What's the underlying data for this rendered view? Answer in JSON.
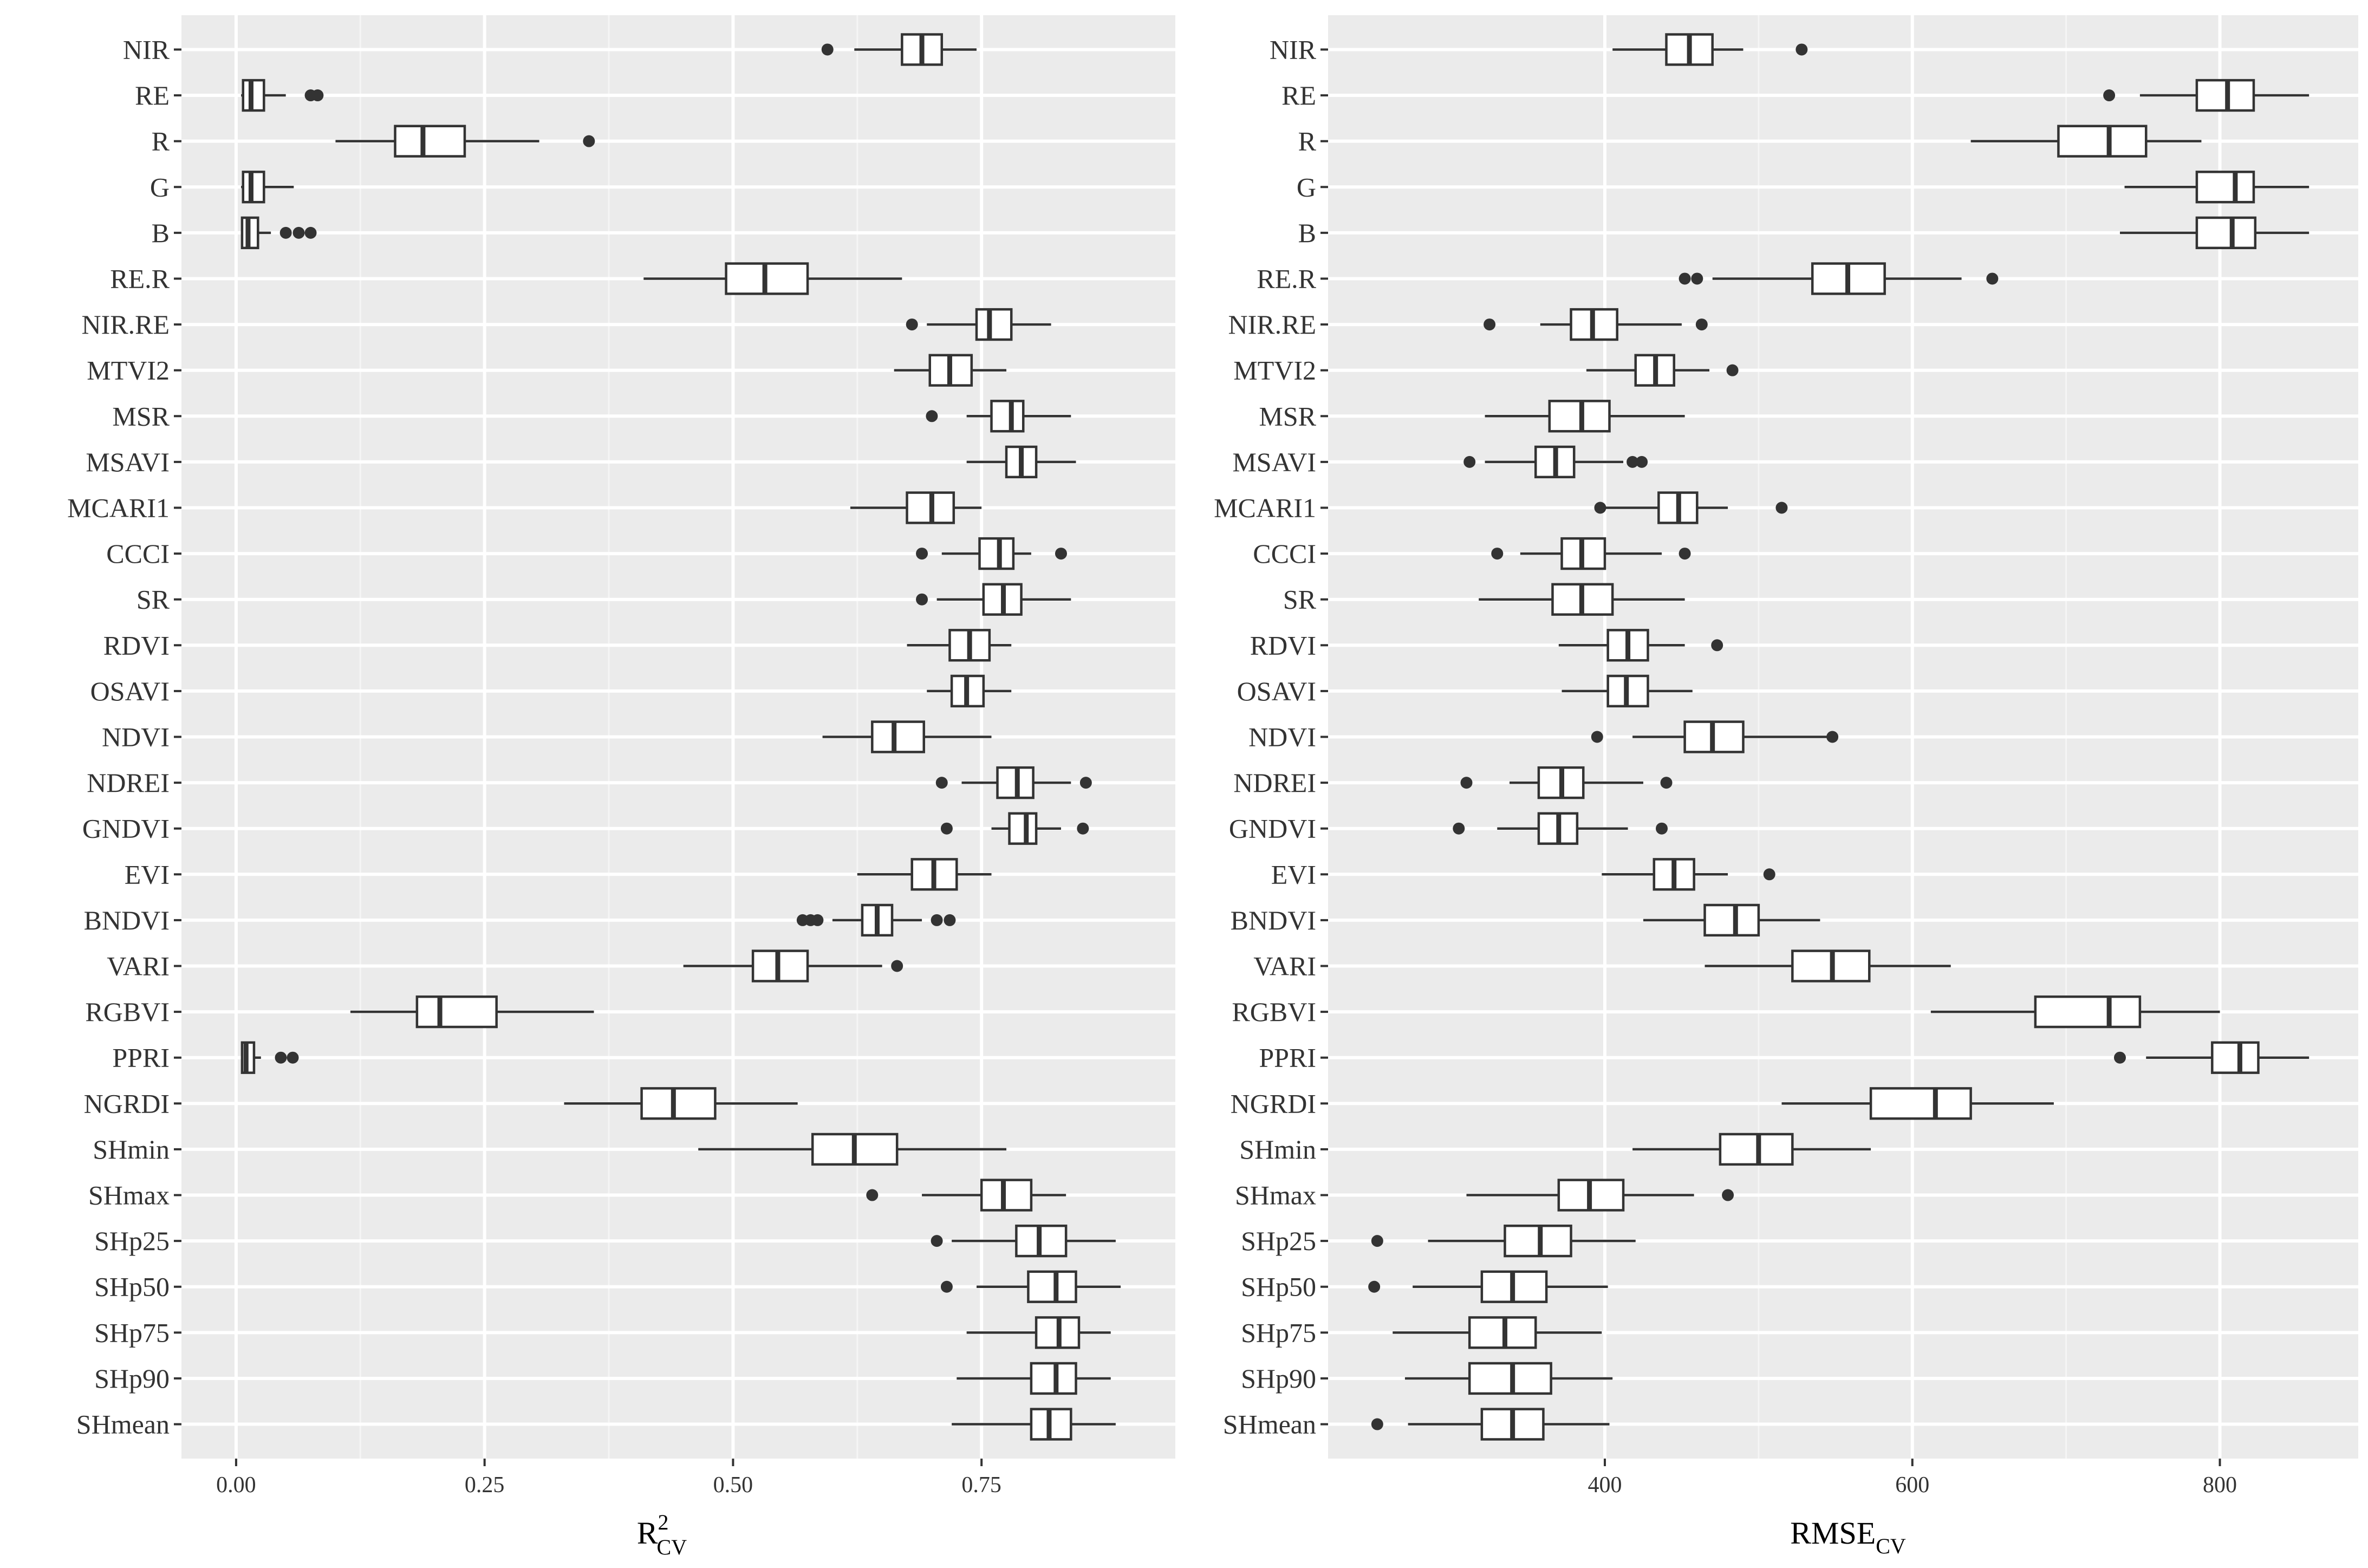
{
  "chart_data": [
    {
      "type": "box",
      "orientation": "horizontal",
      "xlabel_main": "R",
      "xlabel_sup": "2",
      "xlabel_sub": "CV",
      "xlim": [
        -0.055,
        0.945
      ],
      "xticks": [
        0,
        0.25,
        0.5,
        0.75
      ],
      "xtick_labels": [
        "0.00",
        "0.25",
        "0.50",
        "0.75"
      ],
      "grid": true,
      "panel_bg": "#ebebeb",
      "boxes": [
        {
          "label": "NIR",
          "wlo": 0.622,
          "q1": 0.67,
          "median": 0.69,
          "q3": 0.71,
          "whi": 0.745,
          "outliers": [
            0.595
          ]
        },
        {
          "label": "RE",
          "wlo": 0.005,
          "q1": 0.007,
          "median": 0.015,
          "q3": 0.028,
          "whi": 0.05,
          "outliers": [
            0.075,
            0.082
          ]
        },
        {
          "label": "R",
          "wlo": 0.1,
          "q1": 0.16,
          "median": 0.188,
          "q3": 0.23,
          "whi": 0.305,
          "outliers": [
            0.355
          ]
        },
        {
          "label": "G",
          "wlo": 0.005,
          "q1": 0.007,
          "median": 0.015,
          "q3": 0.028,
          "whi": 0.058,
          "outliers": []
        },
        {
          "label": "B",
          "wlo": 0.005,
          "q1": 0.006,
          "median": 0.012,
          "q3": 0.022,
          "whi": 0.035,
          "outliers": [
            0.05,
            0.063,
            0.075
          ]
        },
        {
          "label": "RE.R",
          "wlo": 0.41,
          "q1": 0.493,
          "median": 0.532,
          "q3": 0.575,
          "whi": 0.67,
          "outliers": []
        },
        {
          "label": "NIR.RE",
          "wlo": 0.695,
          "q1": 0.745,
          "median": 0.758,
          "q3": 0.78,
          "whi": 0.82,
          "outliers": [
            0.68
          ]
        },
        {
          "label": "MTVI2",
          "wlo": 0.662,
          "q1": 0.698,
          "median": 0.718,
          "q3": 0.74,
          "whi": 0.775,
          "outliers": []
        },
        {
          "label": "MSR",
          "wlo": 0.735,
          "q1": 0.76,
          "median": 0.78,
          "q3": 0.792,
          "whi": 0.84,
          "outliers": [
            0.7
          ]
        },
        {
          "label": "MSAVI",
          "wlo": 0.735,
          "q1": 0.775,
          "median": 0.79,
          "q3": 0.805,
          "whi": 0.845,
          "outliers": []
        },
        {
          "label": "MCARI1",
          "wlo": 0.618,
          "q1": 0.675,
          "median": 0.7,
          "q3": 0.722,
          "whi": 0.75,
          "outliers": []
        },
        {
          "label": "CCCI",
          "wlo": 0.71,
          "q1": 0.748,
          "median": 0.768,
          "q3": 0.782,
          "whi": 0.8,
          "outliers": [
            0.69,
            0.83
          ]
        },
        {
          "label": "SR",
          "wlo": 0.705,
          "q1": 0.752,
          "median": 0.772,
          "q3": 0.79,
          "whi": 0.84,
          "outliers": [
            0.69
          ]
        },
        {
          "label": "RDVI",
          "wlo": 0.675,
          "q1": 0.718,
          "median": 0.738,
          "q3": 0.758,
          "whi": 0.78,
          "outliers": []
        },
        {
          "label": "OSAVI",
          "wlo": 0.695,
          "q1": 0.72,
          "median": 0.735,
          "q3": 0.752,
          "whi": 0.78,
          "outliers": []
        },
        {
          "label": "NDVI",
          "wlo": 0.59,
          "q1": 0.64,
          "median": 0.662,
          "q3": 0.692,
          "whi": 0.76,
          "outliers": []
        },
        {
          "label": "NDREI",
          "wlo": 0.73,
          "q1": 0.766,
          "median": 0.786,
          "q3": 0.802,
          "whi": 0.84,
          "outliers": [
            0.71,
            0.855
          ]
        },
        {
          "label": "GNDVI",
          "wlo": 0.76,
          "q1": 0.778,
          "median": 0.795,
          "q3": 0.805,
          "whi": 0.83,
          "outliers": [
            0.715,
            0.852
          ]
        },
        {
          "label": "EVI",
          "wlo": 0.625,
          "q1": 0.68,
          "median": 0.702,
          "q3": 0.725,
          "whi": 0.76,
          "outliers": []
        },
        {
          "label": "BNDVI",
          "wlo": 0.6,
          "q1": 0.63,
          "median": 0.645,
          "q3": 0.66,
          "whi": 0.69,
          "outliers": [
            0.57,
            0.578,
            0.585,
            0.705,
            0.718
          ]
        },
        {
          "label": "VARI",
          "wlo": 0.45,
          "q1": 0.52,
          "median": 0.545,
          "q3": 0.575,
          "whi": 0.65,
          "outliers": [
            0.665
          ]
        },
        {
          "label": "RGBVI",
          "wlo": 0.115,
          "q1": 0.182,
          "median": 0.205,
          "q3": 0.262,
          "whi": 0.36,
          "outliers": []
        },
        {
          "label": "PPRI",
          "wlo": 0.005,
          "q1": 0.006,
          "median": 0.01,
          "q3": 0.018,
          "whi": 0.025,
          "outliers": [
            0.045,
            0.057
          ]
        },
        {
          "label": "NGRDI",
          "wlo": 0.33,
          "q1": 0.408,
          "median": 0.44,
          "q3": 0.482,
          "whi": 0.565,
          "outliers": []
        },
        {
          "label": "SHmin",
          "wlo": 0.465,
          "q1": 0.58,
          "median": 0.622,
          "q3": 0.665,
          "whi": 0.775,
          "outliers": []
        },
        {
          "label": "SHmax",
          "wlo": 0.69,
          "q1": 0.75,
          "median": 0.772,
          "q3": 0.8,
          "whi": 0.835,
          "outliers": [
            0.64
          ]
        },
        {
          "label": "SHp25",
          "wlo": 0.72,
          "q1": 0.785,
          "median": 0.808,
          "q3": 0.835,
          "whi": 0.885,
          "outliers": [
            0.705
          ]
        },
        {
          "label": "SHp50",
          "wlo": 0.745,
          "q1": 0.797,
          "median": 0.825,
          "q3": 0.845,
          "whi": 0.89,
          "outliers": [
            0.715
          ]
        },
        {
          "label": "SHp75",
          "wlo": 0.735,
          "q1": 0.805,
          "median": 0.828,
          "q3": 0.848,
          "whi": 0.88,
          "outliers": []
        },
        {
          "label": "SHp90",
          "wlo": 0.725,
          "q1": 0.8,
          "median": 0.825,
          "q3": 0.845,
          "whi": 0.88,
          "outliers": []
        },
        {
          "label": "SHmean",
          "wlo": 0.72,
          "q1": 0.8,
          "median": 0.818,
          "q3": 0.84,
          "whi": 0.885,
          "outliers": []
        }
      ]
    },
    {
      "type": "box",
      "orientation": "horizontal",
      "xlabel_main": "RMSE",
      "xlabel_sub": "CV",
      "xlim": [
        220,
        890
      ],
      "xticks": [
        400,
        600,
        800
      ],
      "xtick_labels": [
        "400",
        "600",
        "800"
      ],
      "grid": true,
      "panel_bg": "#ebebeb",
      "boxes": [
        {
          "label": "NIR",
          "wlo": 405,
          "q1": 440,
          "median": 455,
          "q3": 470,
          "whi": 490,
          "outliers": [
            528
          ]
        },
        {
          "label": "RE",
          "wlo": 748,
          "q1": 785,
          "median": 805,
          "q3": 822,
          "whi": 858,
          "outliers": [
            728
          ]
        },
        {
          "label": "R",
          "wlo": 638,
          "q1": 695,
          "median": 728,
          "q3": 752,
          "whi": 788,
          "outliers": []
        },
        {
          "label": "G",
          "wlo": 738,
          "q1": 785,
          "median": 810,
          "q3": 822,
          "whi": 858,
          "outliers": []
        },
        {
          "label": "B",
          "wlo": 735,
          "q1": 785,
          "median": 808,
          "q3": 823,
          "whi": 858,
          "outliers": []
        },
        {
          "label": "RE.R",
          "wlo": 470,
          "q1": 535,
          "median": 558,
          "q3": 582,
          "whi": 632,
          "outliers": [
            452,
            460,
            652
          ]
        },
        {
          "label": "NIR.RE",
          "wlo": 358,
          "q1": 378,
          "median": 392,
          "q3": 408,
          "whi": 450,
          "outliers": [
            325,
            463
          ]
        },
        {
          "label": "MTVI2",
          "wlo": 388,
          "q1": 420,
          "median": 433,
          "q3": 445,
          "whi": 468,
          "outliers": [
            483
          ]
        },
        {
          "label": "MSR",
          "wlo": 322,
          "q1": 364,
          "median": 385,
          "q3": 403,
          "whi": 452,
          "outliers": []
        },
        {
          "label": "MSAVI",
          "wlo": 322,
          "q1": 355,
          "median": 368,
          "q3": 380,
          "whi": 412,
          "outliers": [
            312,
            418,
            424
          ]
        },
        {
          "label": "MCARI1",
          "wlo": 400,
          "q1": 435,
          "median": 448,
          "q3": 460,
          "whi": 480,
          "outliers": [
            397,
            515
          ]
        },
        {
          "label": "CCCI",
          "wlo": 345,
          "q1": 372,
          "median": 385,
          "q3": 400,
          "whi": 437,
          "outliers": [
            330,
            452
          ]
        },
        {
          "label": "SR",
          "wlo": 318,
          "q1": 366,
          "median": 385,
          "q3": 405,
          "whi": 452,
          "outliers": []
        },
        {
          "label": "RDVI",
          "wlo": 370,
          "q1": 402,
          "median": 415,
          "q3": 428,
          "whi": 452,
          "outliers": [
            473
          ]
        },
        {
          "label": "OSAVI",
          "wlo": 372,
          "q1": 402,
          "median": 414,
          "q3": 428,
          "whi": 457,
          "outliers": []
        },
        {
          "label": "NDVI",
          "wlo": 418,
          "q1": 452,
          "median": 470,
          "q3": 490,
          "whi": 545,
          "outliers": [
            395,
            548
          ]
        },
        {
          "label": "NDREI",
          "wlo": 338,
          "q1": 357,
          "median": 372,
          "q3": 386,
          "whi": 425,
          "outliers": [
            310,
            440
          ]
        },
        {
          "label": "GNDVI",
          "wlo": 330,
          "q1": 357,
          "median": 370,
          "q3": 382,
          "whi": 415,
          "outliers": [
            305,
            437
          ]
        },
        {
          "label": "EVI",
          "wlo": 398,
          "q1": 432,
          "median": 445,
          "q3": 458,
          "whi": 480,
          "outliers": [
            507
          ]
        },
        {
          "label": "BNDVI",
          "wlo": 425,
          "q1": 465,
          "median": 485,
          "q3": 500,
          "whi": 540,
          "outliers": []
        },
        {
          "label": "VARI",
          "wlo": 465,
          "q1": 522,
          "median": 548,
          "q3": 572,
          "whi": 625,
          "outliers": []
        },
        {
          "label": "RGBVI",
          "wlo": 612,
          "q1": 680,
          "median": 728,
          "q3": 748,
          "whi": 800,
          "outliers": []
        },
        {
          "label": "PPRI",
          "wlo": 752,
          "q1": 795,
          "median": 813,
          "q3": 825,
          "whi": 858,
          "outliers": [
            735
          ]
        },
        {
          "label": "NGRDI",
          "wlo": 515,
          "q1": 573,
          "median": 615,
          "q3": 638,
          "whi": 692,
          "outliers": []
        },
        {
          "label": "SHmin",
          "wlo": 418,
          "q1": 475,
          "median": 500,
          "q3": 522,
          "whi": 573,
          "outliers": []
        },
        {
          "label": "SHmax",
          "wlo": 310,
          "q1": 370,
          "median": 390,
          "q3": 412,
          "whi": 458,
          "outliers": [
            480
          ]
        },
        {
          "label": "SHp25",
          "wlo": 285,
          "q1": 335,
          "median": 358,
          "q3": 378,
          "whi": 420,
          "outliers": [
            252
          ]
        },
        {
          "label": "SHp50",
          "wlo": 275,
          "q1": 320,
          "median": 340,
          "q3": 362,
          "whi": 402,
          "outliers": [
            250
          ]
        },
        {
          "label": "SHp75",
          "wlo": 262,
          "q1": 312,
          "median": 335,
          "q3": 355,
          "whi": 398,
          "outliers": []
        },
        {
          "label": "SHp90",
          "wlo": 270,
          "q1": 312,
          "median": 340,
          "q3": 365,
          "whi": 405,
          "outliers": []
        },
        {
          "label": "SHmean",
          "wlo": 272,
          "q1": 320,
          "median": 340,
          "q3": 360,
          "whi": 403,
          "outliers": [
            252
          ]
        }
      ]
    }
  ]
}
